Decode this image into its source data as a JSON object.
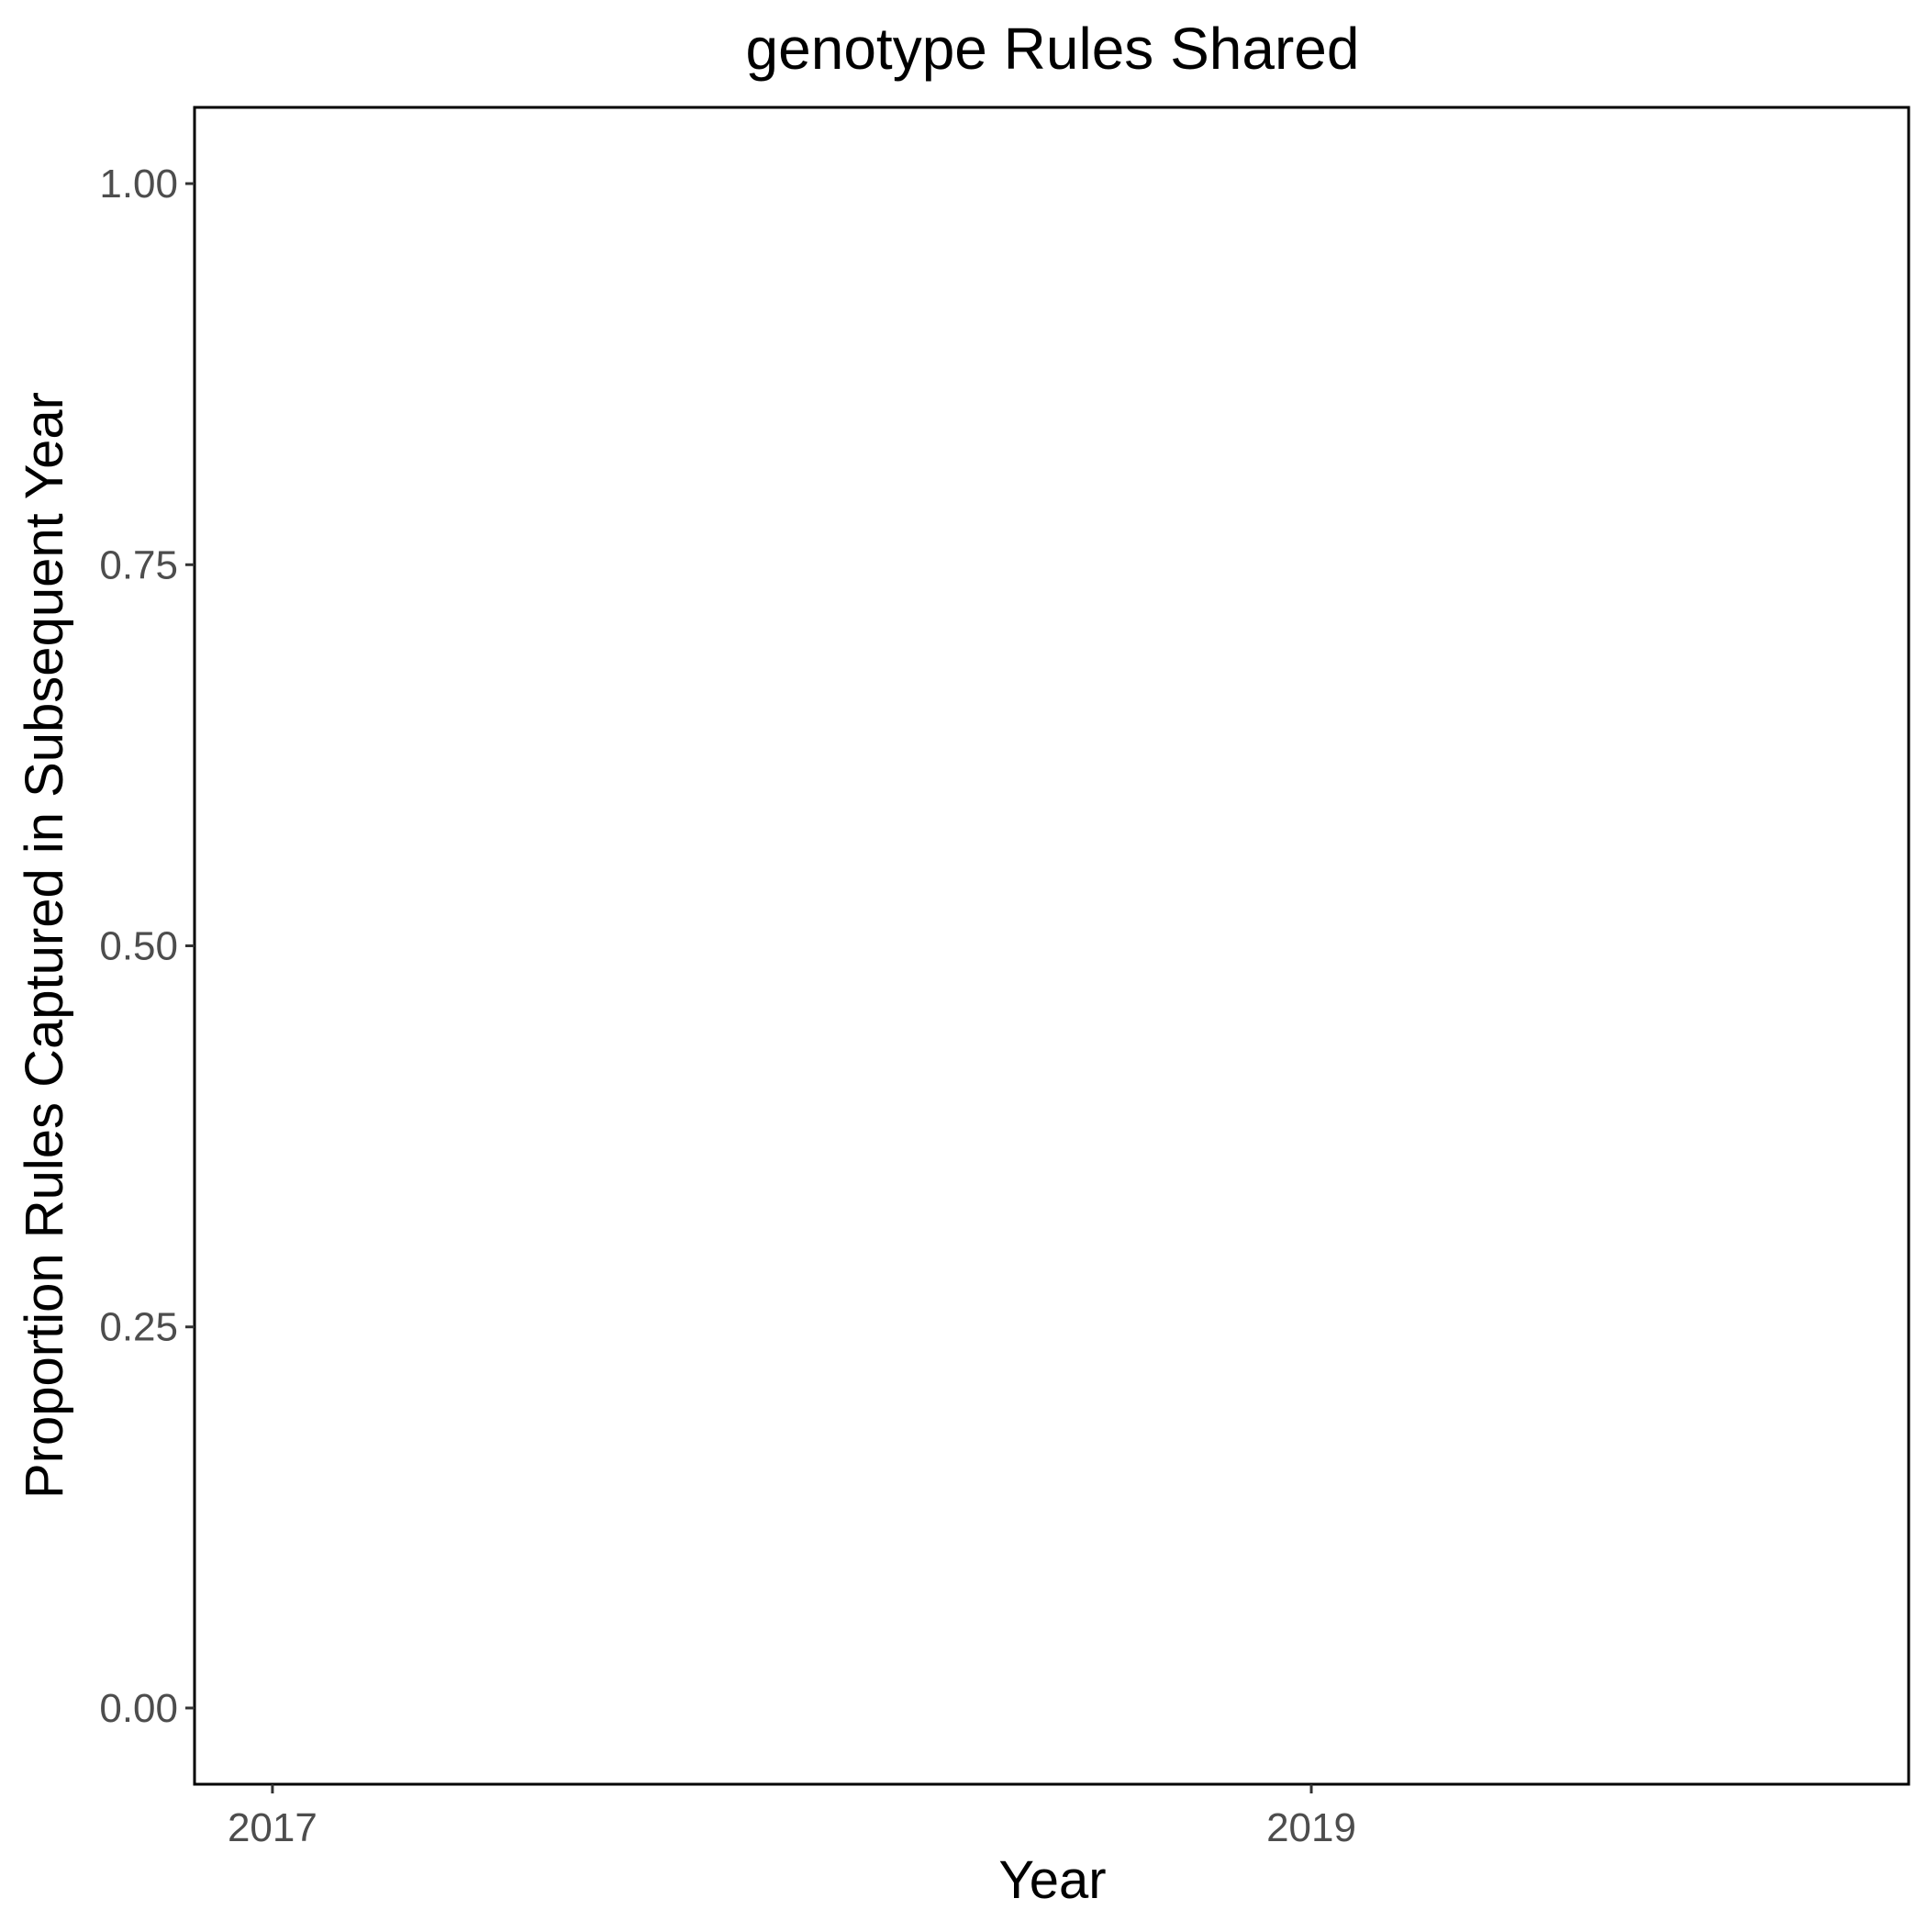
{
  "chart_data": {
    "type": "line",
    "title": "genotype Rules Shared",
    "xlabel": "Year",
    "ylabel": "Proportion Rules Captured in Subsequent Year",
    "x_ticks": [
      "2017",
      "2019"
    ],
    "x_tick_values": [
      2017,
      2019
    ],
    "y_ticks": [
      "0.00",
      "0.25",
      "0.50",
      "0.75",
      "1.00"
    ],
    "y_tick_values": [
      0,
      0.25,
      0.5,
      0.75,
      1
    ],
    "xlim": [
      2016.85,
      2020.15
    ],
    "ylim": [
      -0.05,
      1.05
    ],
    "grid": false,
    "series": []
  }
}
